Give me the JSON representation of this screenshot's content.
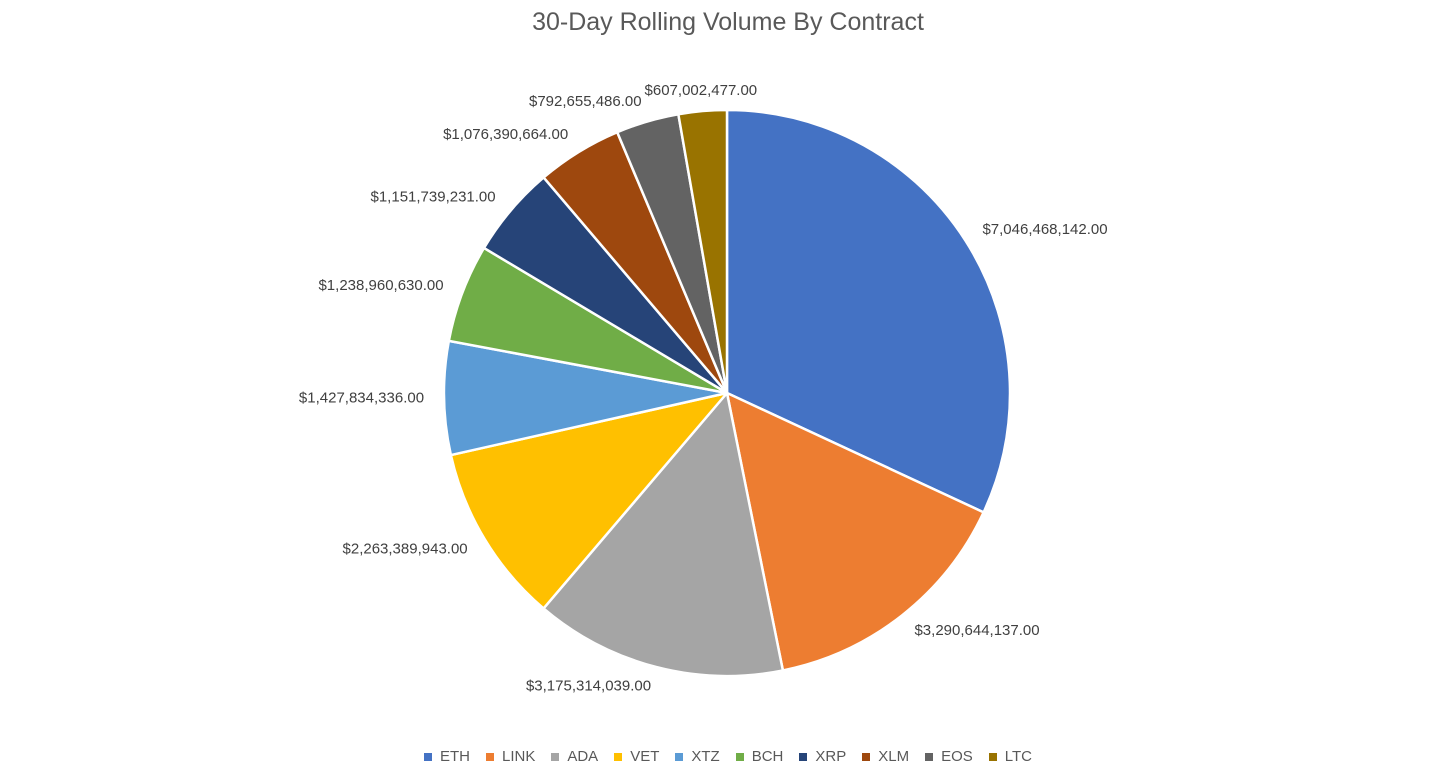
{
  "chart_data": {
    "type": "pie",
    "title": "30-Day Rolling Volume By Contract",
    "categories": [
      "ETH",
      "LINK",
      "ADA",
      "VET",
      "XTZ",
      "BCH",
      "XRP",
      "XLM",
      "EOS",
      "LTC"
    ],
    "values": [
      7046468142.0,
      3290644137.0,
      3175314039.0,
      2263389943.0,
      1427834336.0,
      1238960630.0,
      1151739231.0,
      1076390664.0,
      792655486.0,
      607002477.0
    ],
    "data_labels": [
      "$7,046,468,142.00",
      "$3,290,644,137.00",
      "$3,175,314,039.00",
      "$2,263,389,943.00",
      "$1,427,834,336.00",
      "$1,238,960,630.00",
      "$1,151,739,231.00",
      "$1,076,390,664.00",
      "$792,655,486.00",
      "$607,002,477.00"
    ],
    "colors": [
      "#4472C4",
      "#ED7D31",
      "#A5A5A5",
      "#FFC000",
      "#5B9BD5",
      "#70AD47",
      "#264478",
      "#9E480E",
      "#636363",
      "#997300"
    ],
    "legend_position": "bottom",
    "start_angle": "12 o'clock",
    "direction": "clockwise"
  }
}
